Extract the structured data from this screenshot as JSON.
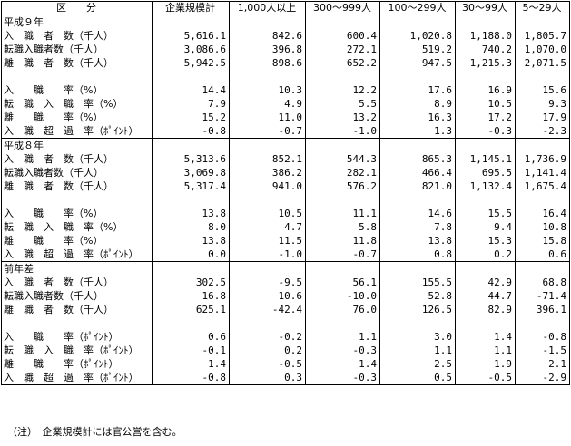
{
  "headers": [
    "区　　分",
    "企業規模計",
    "1,000人以上",
    "300～999人",
    "100～299人",
    "30～99人",
    "5～29人"
  ],
  "sections": [
    {
      "title": "平成９年",
      "rows": [
        {
          "label": "入　職　者　数（千人）",
          "values": [
            "5,616.1",
            "842.6",
            "600.4",
            "1,020.8",
            "1,188.0",
            "1,805.7"
          ]
        },
        {
          "label": "転職入職者数（千人）",
          "values": [
            "3,086.6",
            "396.8",
            "272.1",
            "519.2",
            "740.2",
            "1,070.0"
          ]
        },
        {
          "label": "離　職　者　数（千人）",
          "values": [
            "5,942.5",
            "898.6",
            "652.2",
            "947.5",
            "1,215.3",
            "2,071.5"
          ]
        },
        {
          "label": "",
          "values": [
            "",
            "",
            "",
            "",
            "",
            ""
          ]
        },
        {
          "label": "入　　職　　率（%）",
          "values": [
            "14.4",
            "10.3",
            "12.2",
            "17.6",
            "16.9",
            "15.6"
          ]
        },
        {
          "label": "転　職　入　職　率（%）",
          "values": [
            "7.9",
            "4.9",
            "5.5",
            "8.9",
            "10.5",
            "9.3"
          ]
        },
        {
          "label": "離　　職　　率（%）",
          "values": [
            "15.2",
            "11.0",
            "13.2",
            "16.3",
            "17.2",
            "17.9"
          ]
        },
        {
          "label": "入　職　超　過　率（ﾎﾟｲﾝﾄ）",
          "values": [
            "-0.8",
            "-0.7",
            "-1.0",
            "1.3",
            "-0.3",
            "-2.3"
          ]
        }
      ]
    },
    {
      "title": "平成８年",
      "rows": [
        {
          "label": "入　職　者　数（千人）",
          "values": [
            "5,313.6",
            "852.1",
            "544.3",
            "865.3",
            "1,145.1",
            "1,736.9"
          ]
        },
        {
          "label": "転職入職者数（千人）",
          "values": [
            "3,069.8",
            "386.2",
            "282.1",
            "466.4",
            "695.5",
            "1,141.4"
          ]
        },
        {
          "label": "離　職　者　数（千人）",
          "values": [
            "5,317.4",
            "941.0",
            "576.2",
            "821.0",
            "1,132.4",
            "1,675.4"
          ]
        },
        {
          "label": "",
          "values": [
            "",
            "",
            "",
            "",
            "",
            ""
          ]
        },
        {
          "label": "入　　職　　率（%）",
          "values": [
            "13.8",
            "10.5",
            "11.1",
            "14.6",
            "15.5",
            "16.4"
          ]
        },
        {
          "label": "転　職　入　職　率（%）",
          "values": [
            "8.0",
            "4.7",
            "5.8",
            "7.8",
            "9.4",
            "10.8"
          ]
        },
        {
          "label": "離　　職　　率（%）",
          "values": [
            "13.8",
            "11.5",
            "11.8",
            "13.8",
            "15.3",
            "15.8"
          ]
        },
        {
          "label": "入　職　超　過　率（ﾎﾟｲﾝﾄ）",
          "values": [
            "0.0",
            "-1.0",
            "-0.7",
            "0.8",
            "0.2",
            "0.6"
          ]
        }
      ]
    },
    {
      "title": "前年差",
      "rows": [
        {
          "label": "入　職　者　数（千人）",
          "values": [
            "302.5",
            "-9.5",
            "56.1",
            "155.5",
            "42.9",
            "68.8"
          ]
        },
        {
          "label": "転職入職者数（千人）",
          "values": [
            "16.8",
            "10.6",
            "-10.0",
            "52.8",
            "44.7",
            "-71.4"
          ]
        },
        {
          "label": "離　職　者　数（千人）",
          "values": [
            "625.1",
            "-42.4",
            "76.0",
            "126.5",
            "82.9",
            "396.1"
          ]
        },
        {
          "label": "",
          "values": [
            "",
            "",
            "",
            "",
            "",
            ""
          ]
        },
        {
          "label": "入　　職　　率（ﾎﾟｲﾝﾄ）",
          "values": [
            "0.6",
            "-0.2",
            "1.1",
            "3.0",
            "1.4",
            "-0.8"
          ]
        },
        {
          "label": "転　職　入　職　率（ﾎﾟｲﾝﾄ）",
          "values": [
            "-0.1",
            "0.2",
            "-0.3",
            "1.1",
            "1.1",
            "-1.5"
          ]
        },
        {
          "label": "離　　職　　率（ﾎﾟｲﾝﾄ）",
          "values": [
            "1.4",
            "-0.5",
            "1.4",
            "2.5",
            "1.9",
            "2.1"
          ]
        },
        {
          "label": "入　職　超　過　率（ﾎﾟｲﾝﾄ）",
          "values": [
            "-0.8",
            "0.3",
            "-0.3",
            "0.5",
            "-0.5",
            "-2.9"
          ]
        }
      ]
    }
  ],
  "note": "（注）　企業規模計には官公営を含む。"
}
